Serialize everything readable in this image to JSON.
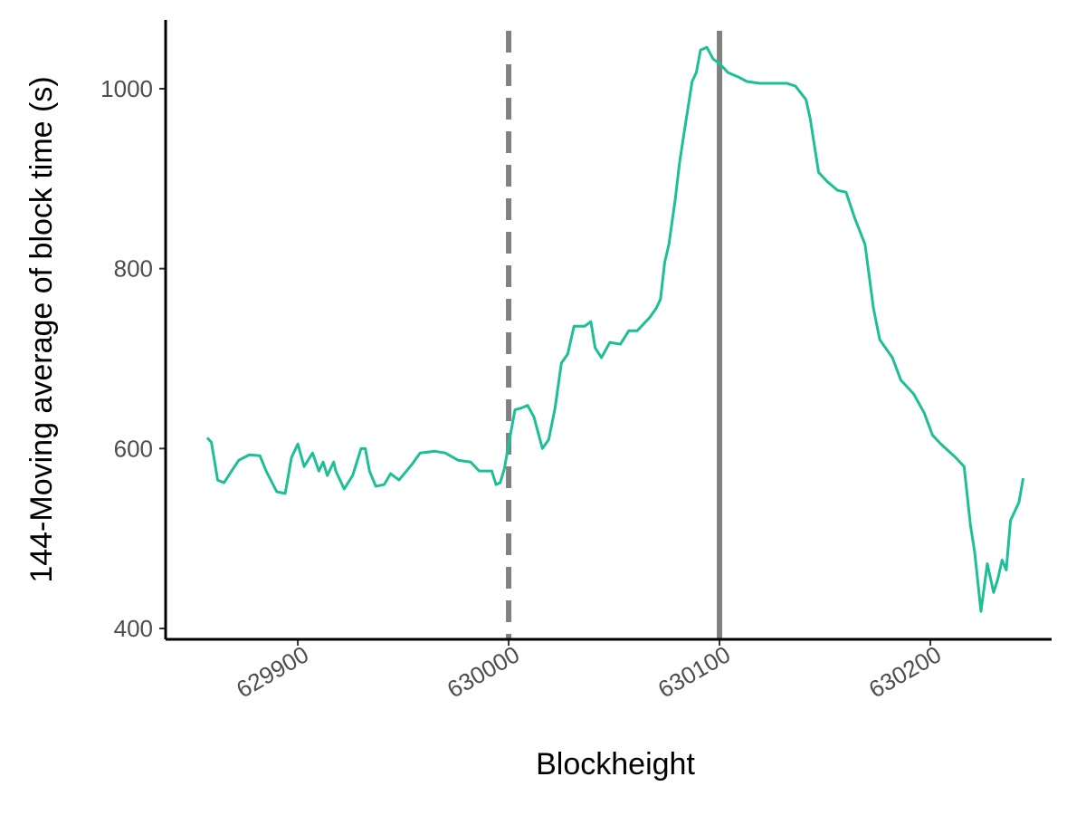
{
  "chart_data": {
    "type": "line",
    "xlabel": "Blockheight",
    "ylabel": "144-Moving average of block time (s)",
    "x": [
      629857,
      629859,
      629862,
      629865,
      629870,
      629872,
      629877,
      629882,
      629885,
      629890,
      629894,
      629897,
      629900,
      629903,
      629907,
      629910,
      629912,
      629914,
      629917,
      629918,
      629922,
      629926,
      629930,
      629932,
      629934,
      629937,
      629941,
      629944,
      629948,
      629954,
      629958,
      629965,
      629970,
      629976,
      629982,
      629986,
      629992,
      629994,
      629996,
      629998,
      630000,
      630003,
      630006,
      630009,
      630012,
      630016,
      630019,
      630022,
      630025,
      630028,
      630031,
      630036,
      630039,
      630041,
      630044,
      630048,
      630053,
      630057,
      630061,
      630067,
      630070,
      630072,
      630074,
      630076,
      630079,
      630081,
      630083,
      630085,
      630087,
      630089,
      630091,
      630094,
      630097,
      630100,
      630104,
      630109,
      630113,
      630119,
      630126,
      630132,
      630136,
      630141,
      630143,
      630147,
      630151,
      630156,
      630160,
      630164,
      630169,
      630173,
      630176,
      630182,
      630186,
      630192,
      630197,
      630201,
      630205,
      630212,
      630216,
      630219,
      630221,
      630224,
      630227,
      630230,
      630232,
      630234,
      630236,
      630238,
      630242,
      630244
    ],
    "series": [
      {
        "color": "#1dbf96",
        "values": [
          612,
          607,
          565,
          562,
          580,
          587,
          593,
          592,
          575,
          552,
          550,
          590,
          605,
          580,
          595,
          575,
          585,
          570,
          585,
          575,
          555,
          570,
          600,
          600,
          575,
          558,
          560,
          572,
          565,
          582,
          595,
          597,
          595,
          587,
          585,
          575,
          575,
          560,
          562,
          578,
          605,
          643,
          645,
          648,
          635,
          600,
          610,
          645,
          695,
          705,
          736,
          736,
          741,
          712,
          701,
          718,
          716,
          731,
          731,
          746,
          756,
          766,
          807,
          827,
          877,
          917,
          948,
          978,
          1008,
          1018,
          1043,
          1046,
          1033,
          1028,
          1018,
          1013,
          1008,
          1006,
          1006,
          1006,
          1003,
          988,
          967,
          907,
          897,
          887,
          885,
          857,
          827,
          756,
          721,
          701,
          676,
          661,
          640,
          615,
          605,
          590,
          580,
          515,
          485,
          419,
          472,
          440,
          455,
          476,
          465,
          520,
          540,
          567
        ]
      }
    ],
    "vlines": [
      {
        "x": 630000,
        "style": "dashed",
        "color": "#808080"
      },
      {
        "x": 630100,
        "style": "solid",
        "color": "#808080"
      }
    ],
    "xlim": [
      629837.3,
      630257.5
    ],
    "xticks": [
      629900,
      630000,
      630100,
      630200
    ],
    "ylim": [
      387.9,
      1076.5
    ],
    "yticks": [
      400,
      600,
      800,
      1000
    ],
    "grid": false
  }
}
